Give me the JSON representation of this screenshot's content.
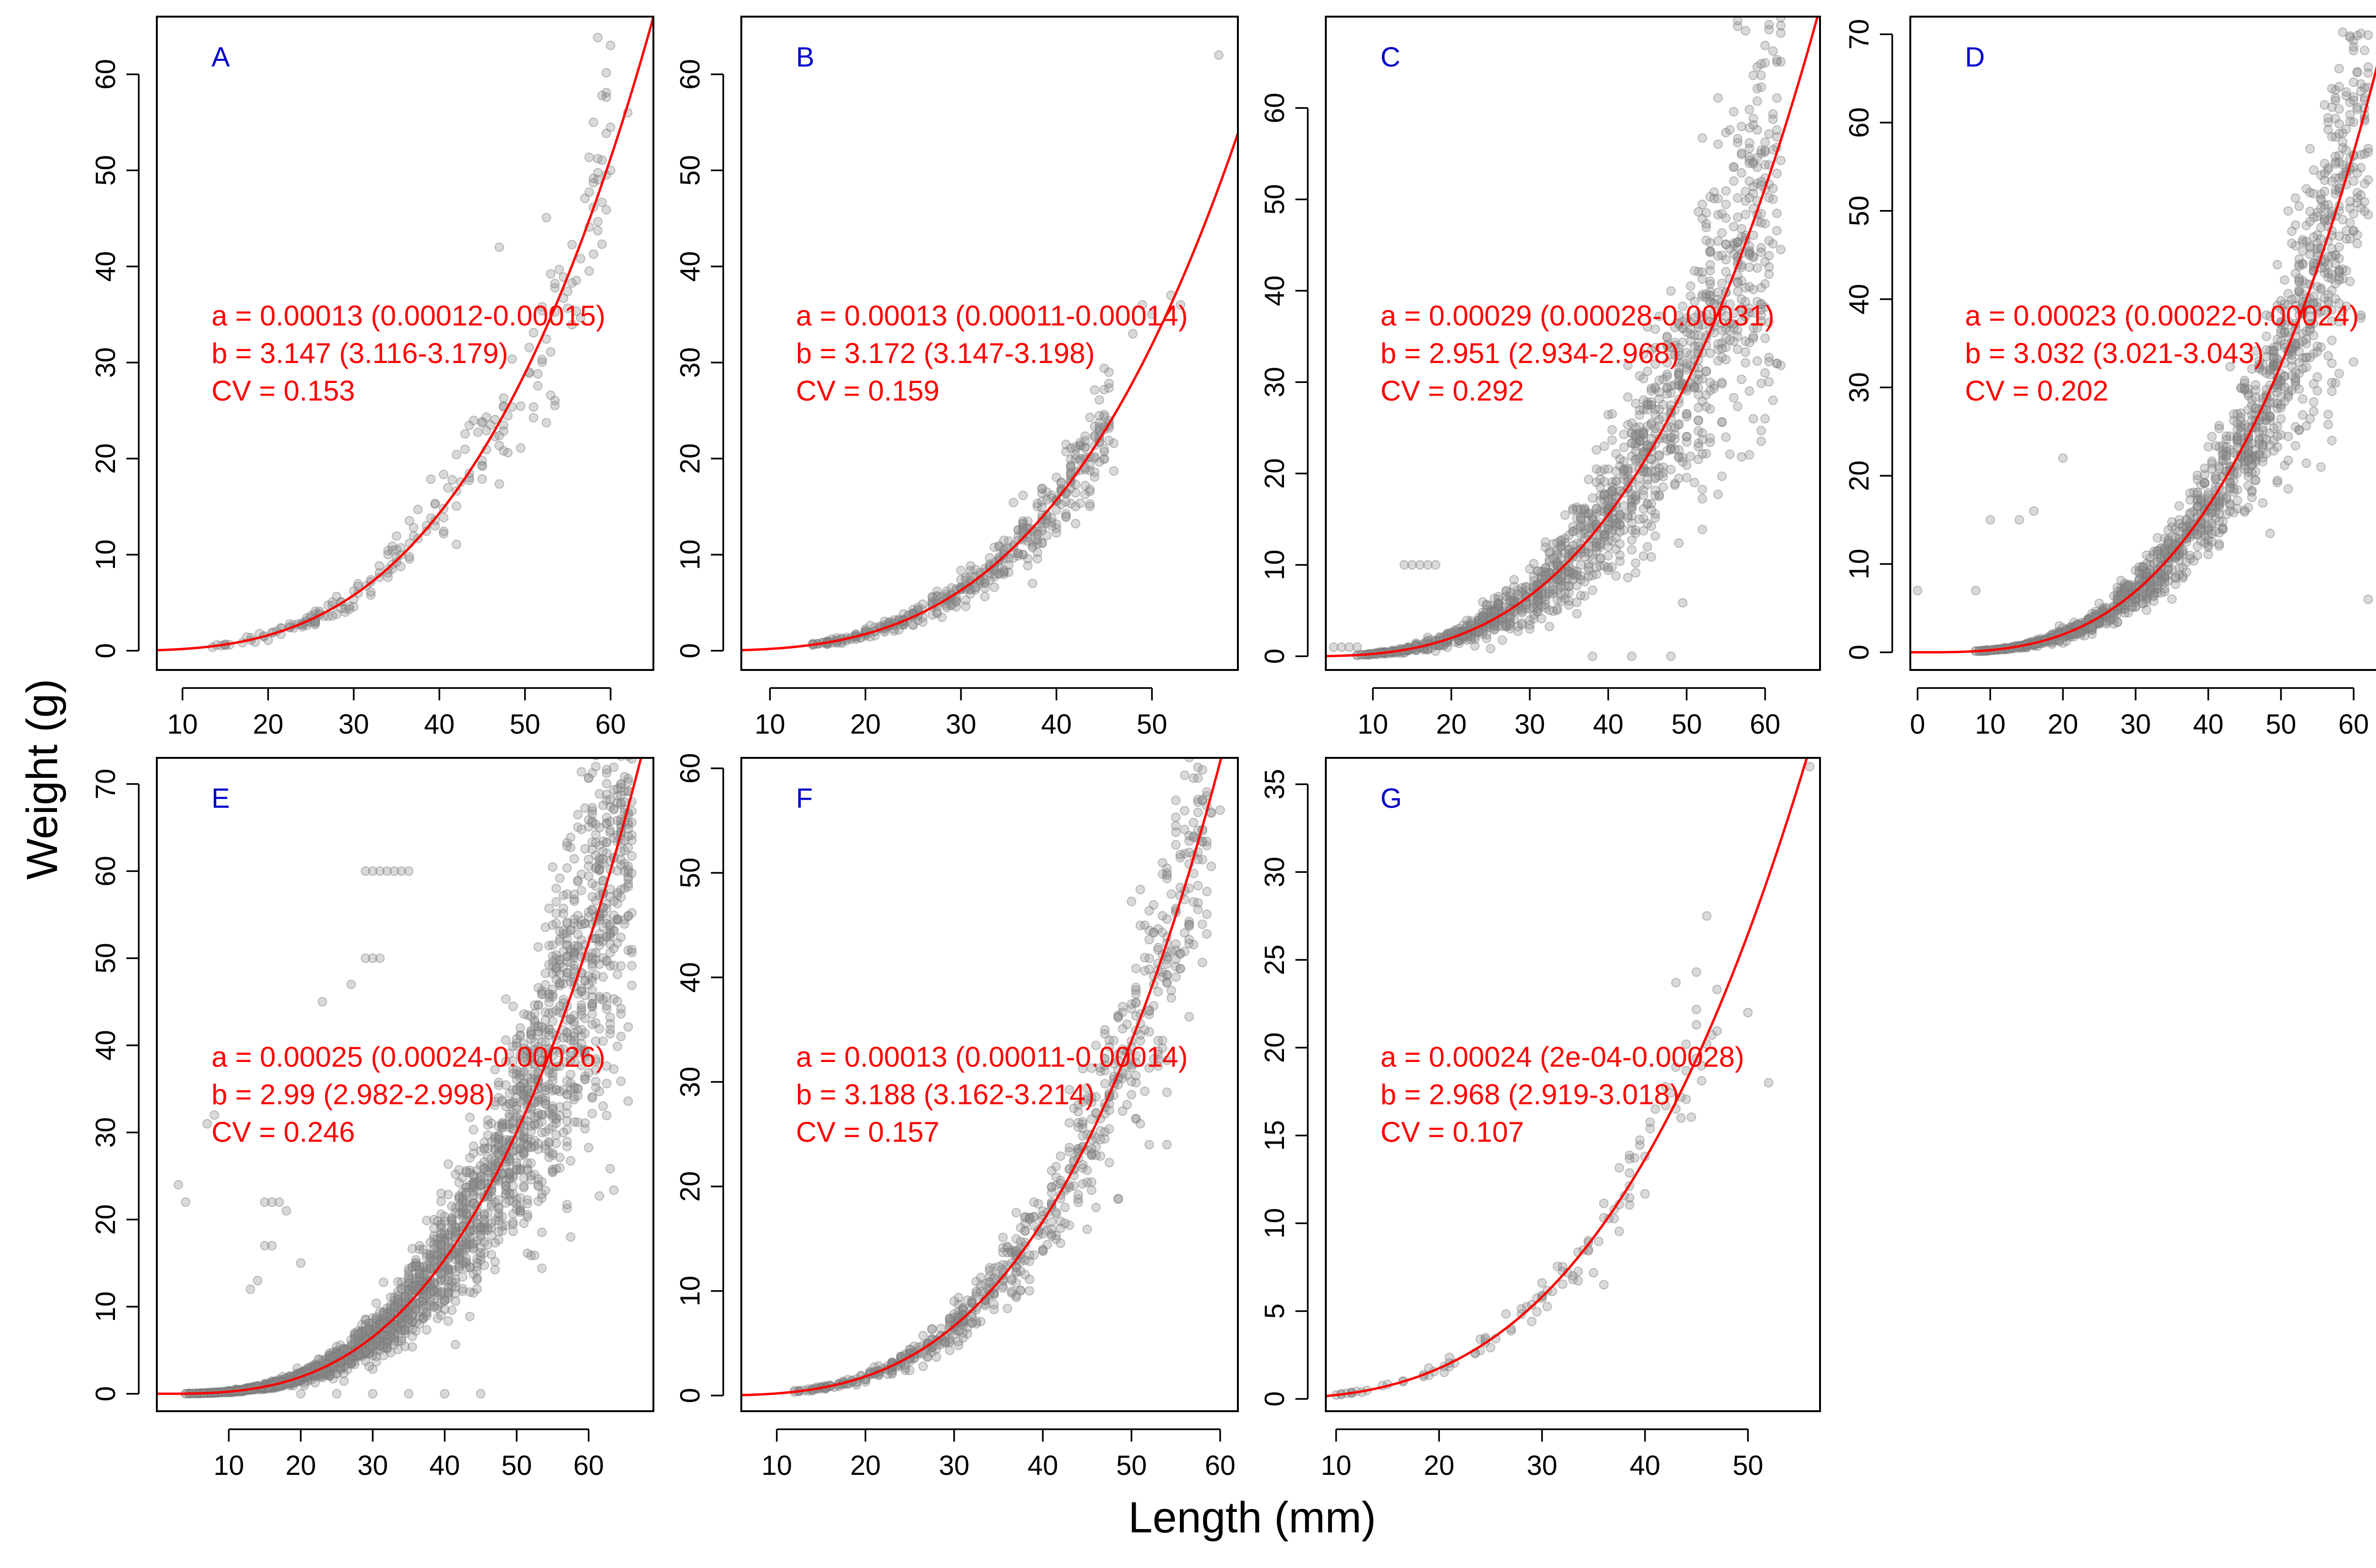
{
  "figure": {
    "xlabel": "Length (mm)",
    "ylabel": "Weight (g)"
  },
  "chart_data": [
    {
      "type": "scatter",
      "panel": "A",
      "xlabel": "Length (mm)",
      "ylabel": "Weight (g)",
      "xlim": [
        7,
        65
      ],
      "ylim": [
        -2,
        66
      ],
      "xticks": [
        10,
        20,
        30,
        40,
        50,
        60
      ],
      "yticks": [
        0,
        10,
        20,
        30,
        40,
        50,
        60
      ],
      "fit": {
        "a": 0.00013,
        "b": 3.147
      },
      "annotations": [
        "a = 0.00013 (0.00012-0.00015)",
        "b = 3.147 (3.116-3.179)",
        "CV = 0.153"
      ],
      "scatter": {
        "x_range": [
          12,
          60
        ],
        "cv": 0.153,
        "n": 220
      },
      "extra_points": [
        [
          60,
          50
        ],
        [
          62,
          56
        ],
        [
          47,
          42
        ],
        [
          58,
          55
        ]
      ],
      "grid": false,
      "point_color": "#999999",
      "line_color": "#ff0000"
    },
    {
      "type": "scatter",
      "panel": "B",
      "xlabel": "Length (mm)",
      "ylabel": "Weight (g)",
      "xlim": [
        7,
        59
      ],
      "ylim": [
        -2,
        66
      ],
      "xticks": [
        10,
        20,
        30,
        40,
        50
      ],
      "yticks": [
        0,
        10,
        20,
        30,
        40,
        50,
        60
      ],
      "fit": {
        "a": 0.00013,
        "b": 3.172
      },
      "annotations": [
        "a = 0.00013 (0.00011-0.00014)",
        "b = 3.172 (3.147-3.198)",
        "CV = 0.159"
      ],
      "scatter": {
        "x_range": [
          14,
          46
        ],
        "cv": 0.159,
        "n": 420
      },
      "extra_points": [
        [
          57,
          62
        ],
        [
          50,
          35
        ],
        [
          52,
          37
        ],
        [
          53,
          36
        ],
        [
          48,
          33
        ],
        [
          49,
          36
        ]
      ],
      "grid": false,
      "point_color": "#999999",
      "line_color": "#ff0000"
    },
    {
      "type": "scatter",
      "panel": "C",
      "xlabel": "Length (mm)",
      "ylabel": "Weight (g)",
      "xlim": [
        4,
        67
      ],
      "ylim": [
        -1.5,
        70
      ],
      "xticks": [
        10,
        20,
        30,
        40,
        50,
        60
      ],
      "yticks": [
        0,
        10,
        20,
        30,
        40,
        50,
        60
      ],
      "fit": {
        "a": 0.00029,
        "b": 2.951
      },
      "annotations": [
        "a = 0.00029 (0.00028-0.00031)",
        "b = 2.951 (2.934-2.968)",
        "CV = 0.292"
      ],
      "scatter": {
        "x_range": [
          8,
          62
        ],
        "cv": 0.292,
        "n": 1400
      },
      "extra_points": [
        [
          14,
          10
        ],
        [
          15,
          10
        ],
        [
          16,
          10
        ],
        [
          17,
          10
        ],
        [
          18,
          10
        ],
        [
          5,
          1
        ],
        [
          6,
          1
        ],
        [
          7,
          1
        ],
        [
          8,
          1
        ],
        [
          38,
          0
        ],
        [
          43,
          0
        ],
        [
          48,
          0
        ],
        [
          44,
          15
        ]
      ],
      "grid": false,
      "point_color": "#999999",
      "line_color": "#ff0000"
    },
    {
      "type": "scatter",
      "panel": "D",
      "xlabel": "Length (mm)",
      "ylabel": "Weight (g)",
      "xlim": [
        -1,
        67
      ],
      "ylim": [
        -2,
        72
      ],
      "xticks": [
        0,
        10,
        20,
        30,
        40,
        50,
        60
      ],
      "yticks": [
        0,
        10,
        20,
        30,
        40,
        50,
        60,
        70
      ],
      "fit": {
        "a": 0.00023,
        "b": 3.032
      },
      "annotations": [
        "a = 0.00023 (0.00022-0.00024)",
        "b = 3.032 (3.021-3.043)",
        "CV = 0.202"
      ],
      "scatter": {
        "x_range": [
          8,
          62
        ],
        "cv": 0.202,
        "n": 1400
      },
      "extra_points": [
        [
          0,
          7
        ],
        [
          8,
          7
        ],
        [
          10,
          15
        ],
        [
          14,
          15
        ],
        [
          16,
          16
        ],
        [
          20,
          22
        ],
        [
          62,
          6
        ],
        [
          64,
          50
        ],
        [
          56,
          62
        ]
      ],
      "grid": false,
      "point_color": "#999999",
      "line_color": "#ff0000"
    },
    {
      "type": "scatter",
      "panel": "E",
      "xlabel": "Length (mm)",
      "ylabel": "Weight (g)",
      "xlim": [
        0,
        69
      ],
      "ylim": [
        -2,
        73
      ],
      "xticks": [
        10,
        20,
        30,
        40,
        50,
        60
      ],
      "yticks": [
        0,
        10,
        20,
        30,
        40,
        50,
        60,
        70
      ],
      "fit": {
        "a": 0.00025,
        "b": 2.99
      },
      "annotations": [
        "a = 0.00025 (0.00024-0.00026)",
        "b = 2.99 (2.982-2.998)",
        "CV = 0.246"
      ],
      "scatter": {
        "x_range": [
          4,
          66
        ],
        "cv": 0.246,
        "n": 2400
      },
      "extra_points": [
        [
          29,
          60
        ],
        [
          30,
          60
        ],
        [
          31,
          60
        ],
        [
          32,
          60
        ],
        [
          33,
          60
        ],
        [
          34,
          60
        ],
        [
          35,
          60
        ],
        [
          29,
          50
        ],
        [
          30,
          50
        ],
        [
          31,
          50
        ],
        [
          27,
          47
        ],
        [
          23,
          45
        ],
        [
          3,
          24
        ],
        [
          4,
          22
        ],
        [
          7,
          31
        ],
        [
          8,
          32
        ],
        [
          15,
          22
        ],
        [
          16,
          22
        ],
        [
          17,
          22
        ],
        [
          18,
          21
        ],
        [
          15,
          17
        ],
        [
          16,
          17
        ],
        [
          20,
          15
        ],
        [
          13,
          12
        ],
        [
          14,
          13
        ],
        [
          20,
          0
        ],
        [
          25,
          0
        ],
        [
          30,
          0
        ],
        [
          35,
          0
        ],
        [
          40,
          0
        ],
        [
          45,
          0
        ]
      ],
      "grid": false,
      "point_color": "#999999",
      "line_color": "#ff0000"
    },
    {
      "type": "scatter",
      "panel": "F",
      "xlabel": "Length (mm)",
      "ylabel": "Weight (g)",
      "xlim": [
        6,
        62
      ],
      "ylim": [
        -1.5,
        61
      ],
      "xticks": [
        10,
        20,
        30,
        40,
        50,
        60
      ],
      "yticks": [
        0,
        10,
        20,
        30,
        40,
        50,
        60
      ],
      "fit": {
        "a": 0.00013,
        "b": 3.188
      },
      "annotations": [
        "a = 0.00013 (0.00011-0.00014)",
        "b = 3.188 (3.162-3.214)",
        "CV = 0.157"
      ],
      "scatter": {
        "x_range": [
          12,
          59
        ],
        "cv": 0.157,
        "n": 700
      },
      "extra_points": [
        [
          58,
          57
        ],
        [
          60,
          56
        ],
        [
          52,
          24
        ],
        [
          54,
          24
        ]
      ],
      "grid": false,
      "point_color": "#999999",
      "line_color": "#ff0000"
    },
    {
      "type": "scatter",
      "panel": "G",
      "xlabel": "Length (mm)",
      "ylabel": "Weight (g)",
      "xlim": [
        9,
        57
      ],
      "ylim": [
        -0.7,
        36.5
      ],
      "xticks": [
        10,
        20,
        30,
        40,
        50
      ],
      "yticks": [
        0,
        5,
        10,
        15,
        20,
        25,
        30,
        35
      ],
      "fit": {
        "a": 0.00024,
        "b": 2.968
      },
      "annotations": [
        "a = 0.00024 (2e-04-0.00028)",
        "b = 2.968 (2.919-3.018)",
        "CV = 0.107"
      ],
      "scatter": {
        "x_range": [
          10,
          47
        ],
        "cv": 0.107,
        "n": 110
      },
      "extra_points": [
        [
          46,
          27.5
        ],
        [
          43,
          23.7
        ],
        [
          45,
          24.3
        ],
        [
          50,
          22
        ],
        [
          52,
          18
        ],
        [
          56,
          36
        ],
        [
          36,
          6.5
        ],
        [
          33,
          6.8
        ]
      ],
      "grid": false,
      "point_color": "#999999",
      "line_color": "#ff0000"
    }
  ]
}
